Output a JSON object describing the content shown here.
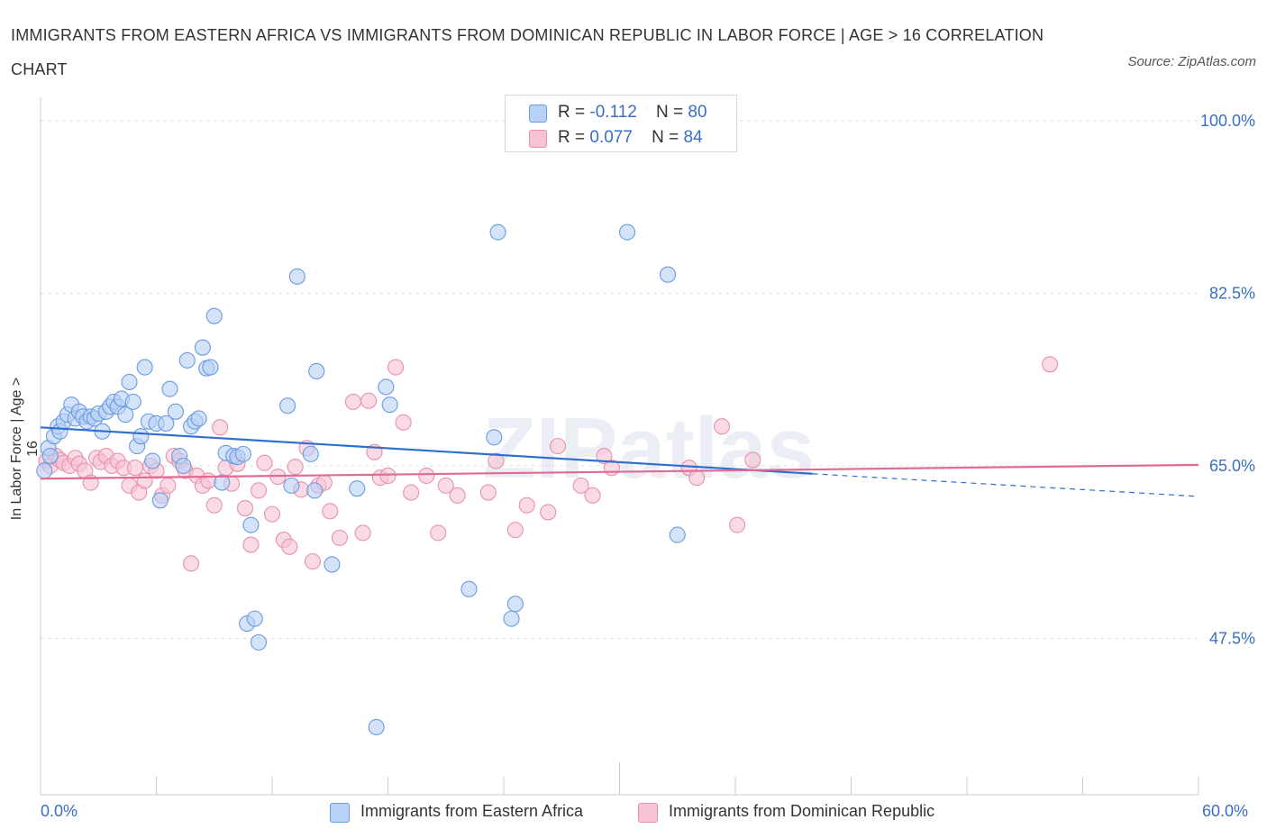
{
  "title": "IMMIGRANTS FROM EASTERN AFRICA VS IMMIGRANTS FROM DOMINICAN REPUBLIC IN LABOR FORCE | AGE > 16 CORRELATION CHART",
  "source": "Source: ZipAtlas.com",
  "watermark": "ZIPatlas",
  "legend": {
    "r_label": "R =",
    "n_label": "N =",
    "series1": {
      "r": "-0.112",
      "n": "80"
    },
    "series2": {
      "r": "0.077",
      "n": "84"
    }
  },
  "colors": {
    "blue": "#6a9be0",
    "blue_fill": "#b9d1f5",
    "blue_line": "#2e6fd0",
    "pink": "#e891ad",
    "pink_fill": "#f7c3d3",
    "pink_line": "#e06b93",
    "tick_text": "#3a6fc4"
  },
  "chart_data": {
    "type": "scatter",
    "title": "IMMIGRANTS FROM EASTERN AFRICA VS IMMIGRANTS FROM DOMINICAN REPUBLIC IN LABOR FORCE | AGE > 16 CORRELATION CHART",
    "xlabel": "",
    "ylabel": "In Labor Force | Age > 16",
    "xlim": [
      0,
      60
    ],
    "ylim": [
      30,
      100
    ],
    "x_tick_labels": [
      "0.0%",
      "60.0%"
    ],
    "y_ticks": [
      47.5,
      65.0,
      82.5,
      100.0
    ],
    "y_tick_labels": [
      "47.5%",
      "65.0%",
      "82.5%",
      "100.0%"
    ],
    "grid": true,
    "legend_position": "bottom",
    "series": [
      {
        "name": "Immigrants from Eastern Africa",
        "color": "#6a9be0",
        "trend": {
          "x": [
            0,
            40
          ],
          "y": [
            68.9,
            64.2
          ],
          "dashed_to": [
            60,
            61.9
          ]
        },
        "points": [
          [
            0.2,
            64.5
          ],
          [
            0.4,
            66.8
          ],
          [
            0.5,
            66.0
          ],
          [
            0.7,
            68.0
          ],
          [
            0.9,
            69.0
          ],
          [
            1.0,
            68.5
          ],
          [
            1.2,
            69.5
          ],
          [
            1.4,
            70.2
          ],
          [
            1.6,
            71.2
          ],
          [
            1.8,
            69.8
          ],
          [
            2.0,
            70.5
          ],
          [
            2.2,
            70.0
          ],
          [
            2.4,
            69.5
          ],
          [
            2.6,
            70.0
          ],
          [
            2.8,
            69.8
          ],
          [
            3.0,
            70.3
          ],
          [
            3.2,
            68.5
          ],
          [
            3.4,
            70.5
          ],
          [
            3.6,
            71.0
          ],
          [
            3.8,
            71.5
          ],
          [
            4.0,
            71.0
          ],
          [
            4.2,
            71.8
          ],
          [
            4.4,
            70.2
          ],
          [
            4.6,
            73.5
          ],
          [
            4.8,
            71.5
          ],
          [
            5.0,
            67.0
          ],
          [
            5.2,
            68.0
          ],
          [
            5.4,
            75.0
          ],
          [
            5.6,
            69.5
          ],
          [
            5.8,
            65.5
          ],
          [
            6.0,
            69.3
          ],
          [
            6.2,
            61.5
          ],
          [
            6.5,
            69.3
          ],
          [
            6.7,
            72.8
          ],
          [
            7.0,
            70.5
          ],
          [
            7.2,
            66.0
          ],
          [
            7.4,
            65.0
          ],
          [
            7.6,
            75.7
          ],
          [
            7.8,
            69.0
          ],
          [
            8.0,
            69.5
          ],
          [
            8.2,
            69.8
          ],
          [
            8.4,
            77.0
          ],
          [
            8.6,
            74.9
          ],
          [
            8.8,
            75.0
          ],
          [
            9.0,
            80.2
          ],
          [
            9.4,
            63.3
          ],
          [
            9.6,
            66.3
          ],
          [
            10.0,
            66.0
          ],
          [
            10.2,
            65.9
          ],
          [
            10.5,
            66.2
          ],
          [
            10.7,
            49.0
          ],
          [
            10.9,
            59.0
          ],
          [
            11.1,
            49.5
          ],
          [
            11.3,
            47.1
          ],
          [
            12.8,
            71.1
          ],
          [
            13.0,
            63.0
          ],
          [
            13.3,
            84.2
          ],
          [
            14.0,
            66.2
          ],
          [
            14.2,
            62.5
          ],
          [
            14.3,
            74.6
          ],
          [
            15.1,
            55.0
          ],
          [
            16.4,
            62.7
          ],
          [
            17.4,
            38.5
          ],
          [
            17.9,
            73.0
          ],
          [
            18.1,
            71.2
          ],
          [
            22.2,
            52.5
          ],
          [
            23.5,
            67.9
          ],
          [
            23.7,
            88.7
          ],
          [
            24.4,
            49.5
          ],
          [
            24.6,
            51.0
          ],
          [
            30.4,
            88.7
          ],
          [
            32.5,
            84.4
          ],
          [
            33.0,
            58.0
          ]
        ]
      },
      {
        "name": "Immigrants from Dominican Republic",
        "color": "#e891ad",
        "trend": {
          "x": [
            0,
            60
          ],
          "y": [
            63.7,
            65.1
          ]
        },
        "points": [
          [
            0.3,
            65.5
          ],
          [
            0.5,
            65.0
          ],
          [
            0.8,
            66.0
          ],
          [
            1.0,
            65.6
          ],
          [
            1.2,
            65.3
          ],
          [
            1.5,
            65.0
          ],
          [
            1.8,
            65.8
          ],
          [
            2.0,
            65.2
          ],
          [
            2.3,
            64.5
          ],
          [
            2.6,
            63.3
          ],
          [
            2.9,
            65.8
          ],
          [
            3.1,
            65.4
          ],
          [
            3.4,
            66.0
          ],
          [
            3.7,
            65.0
          ],
          [
            4.0,
            65.5
          ],
          [
            4.3,
            64.8
          ],
          [
            4.6,
            63.0
          ],
          [
            4.9,
            64.8
          ],
          [
            5.1,
            62.3
          ],
          [
            5.4,
            63.5
          ],
          [
            5.7,
            65.0
          ],
          [
            6.0,
            64.5
          ],
          [
            6.3,
            62.0
          ],
          [
            6.6,
            63.0
          ],
          [
            6.9,
            66.0
          ],
          [
            7.2,
            65.5
          ],
          [
            7.5,
            64.5
          ],
          [
            7.8,
            55.1
          ],
          [
            8.1,
            64.0
          ],
          [
            8.4,
            63.0
          ],
          [
            8.7,
            63.5
          ],
          [
            9.0,
            61.0
          ],
          [
            9.3,
            68.9
          ],
          [
            9.6,
            64.8
          ],
          [
            9.9,
            63.2
          ],
          [
            10.2,
            65.2
          ],
          [
            10.6,
            60.7
          ],
          [
            10.9,
            57.0
          ],
          [
            11.3,
            62.5
          ],
          [
            11.6,
            65.3
          ],
          [
            12.0,
            60.1
          ],
          [
            12.3,
            63.9
          ],
          [
            12.6,
            57.5
          ],
          [
            12.9,
            56.8
          ],
          [
            13.2,
            64.9
          ],
          [
            13.5,
            62.6
          ],
          [
            13.8,
            66.8
          ],
          [
            14.1,
            55.3
          ],
          [
            14.4,
            63.0
          ],
          [
            14.7,
            63.3
          ],
          [
            15.0,
            60.4
          ],
          [
            15.5,
            57.7
          ],
          [
            16.2,
            71.5
          ],
          [
            16.7,
            58.2
          ],
          [
            17.0,
            71.6
          ],
          [
            17.3,
            66.4
          ],
          [
            17.6,
            63.8
          ],
          [
            18.0,
            64.0
          ],
          [
            18.4,
            75.0
          ],
          [
            18.8,
            69.4
          ],
          [
            19.2,
            62.3
          ],
          [
            20.0,
            64.0
          ],
          [
            20.6,
            58.2
          ],
          [
            21.0,
            63.0
          ],
          [
            21.6,
            62.0
          ],
          [
            23.2,
            62.3
          ],
          [
            23.6,
            65.5
          ],
          [
            24.6,
            58.5
          ],
          [
            25.2,
            61.0
          ],
          [
            26.3,
            60.3
          ],
          [
            26.8,
            67.0
          ],
          [
            28.0,
            63.0
          ],
          [
            28.6,
            62.0
          ],
          [
            29.2,
            66.0
          ],
          [
            29.6,
            64.8
          ],
          [
            33.6,
            64.8
          ],
          [
            34.0,
            63.8
          ],
          [
            35.3,
            69.0
          ],
          [
            36.1,
            59.0
          ],
          [
            36.9,
            65.6
          ],
          [
            52.3,
            75.3
          ]
        ]
      }
    ]
  }
}
